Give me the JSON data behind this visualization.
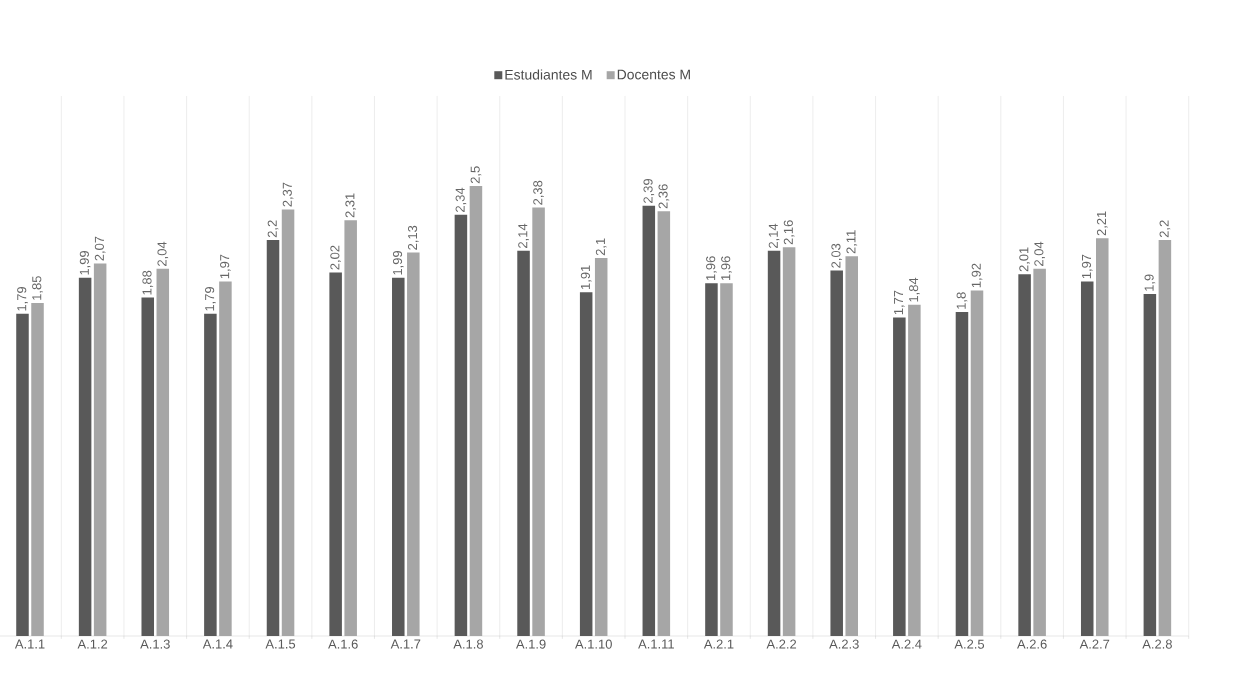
{
  "chart_data": {
    "type": "bar",
    "categories": [
      "A.1.1",
      "A.1.2",
      "A.1.3",
      "A.1.4",
      "A.1.5",
      "A.1.6",
      "A.1.7",
      "A.1.8",
      "A.1.9",
      "A.1.10",
      "A.1.11",
      "A.2.1",
      "A.2.2",
      "A.2.3",
      "A.2.4",
      "A.2.5",
      "A.2.6",
      "A.2.7",
      "A.2.8"
    ],
    "series": [
      {
        "name": "Estudiantes M",
        "color": "#595959",
        "values": [
          1.79,
          1.99,
          1.88,
          1.79,
          2.2,
          2.02,
          1.99,
          2.34,
          2.14,
          1.91,
          2.39,
          1.96,
          2.14,
          2.03,
          1.77,
          1.8,
          2.01,
          1.97,
          1.9
        ],
        "value_labels": [
          "1,79",
          "1,99",
          "1,88",
          "1,79",
          "2,2",
          "2,02",
          "1,99",
          "2,34",
          "2,14",
          "1,91",
          "2,39",
          "1,96",
          "2,14",
          "2,03",
          "1,77",
          "1,8",
          "2,01",
          "1,97",
          "1,9"
        ]
      },
      {
        "name": "Docentes M",
        "color": "#a6a6a6",
        "values": [
          1.85,
          2.07,
          2.04,
          1.97,
          2.37,
          2.31,
          2.13,
          2.5,
          2.38,
          2.1,
          2.36,
          1.96,
          2.16,
          2.11,
          1.84,
          1.92,
          2.04,
          2.21,
          2.2
        ],
        "value_labels": [
          "1,85",
          "2,07",
          "2,04",
          "1,97",
          "2,37",
          "2,31",
          "2,13",
          "2,5",
          "2,38",
          "2,1",
          "2,36",
          "1,96",
          "2,16",
          "2,11",
          "1,84",
          "1,92",
          "2,04",
          "2,21",
          "2,2"
        ]
      }
    ],
    "tick_labels": "x",
    "grid": "x",
    "legend": "top"
  }
}
